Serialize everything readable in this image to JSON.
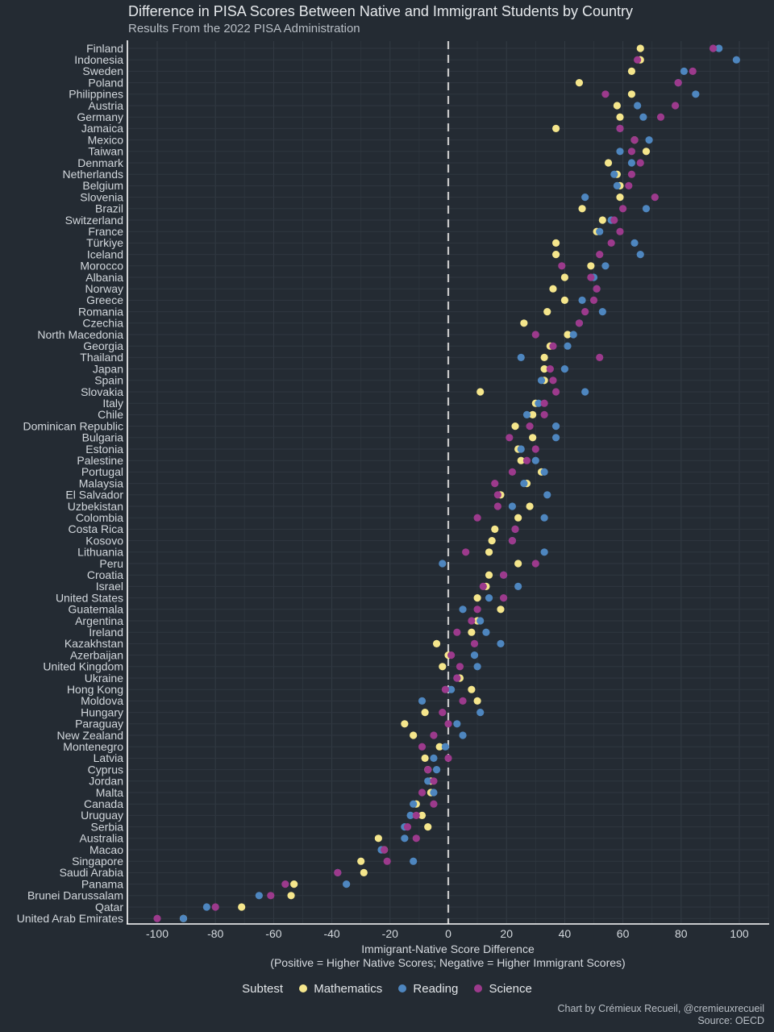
{
  "title": "Difference in PISA Scores Between Native and Immigrant Students by Country",
  "subtitle": "Results From the 2022 PISA Administration",
  "xlabel_line1": "Immigrant-Native Score Difference",
  "xlabel_line2": "(Positive = Higher Native Scores; Negative = Higher Immigrant Scores)",
  "legend": {
    "title": "Subtest",
    "mathematics": "Mathematics",
    "reading": "Reading",
    "science": "Science"
  },
  "credit_line1": "Chart by Crémieux Recueil, @cremieuxrecueil",
  "credit_line2": "Source: OECD",
  "colors": {
    "background": "#242b33",
    "mathematics": "#f5e68c",
    "reading": "#4e86bf",
    "science": "#9c3a8c",
    "zero_line": "#c8c8c8"
  },
  "chart_data": {
    "type": "scatter",
    "xlim": [
      -110,
      110
    ],
    "x_ticks": [
      -100,
      -80,
      -60,
      -40,
      -20,
      0,
      20,
      40,
      60,
      80,
      100
    ],
    "x_tick_labels": [
      "-100",
      "-80",
      "-60",
      "-40",
      "-20",
      "0",
      "20",
      "40",
      "60",
      "80",
      "100"
    ],
    "reference_line": 0,
    "countries": [
      "Finland",
      "Indonesia",
      "Sweden",
      "Poland",
      "Philippines",
      "Austria",
      "Germany",
      "Jamaica",
      "Mexico",
      "Taiwan",
      "Denmark",
      "Netherlands",
      "Belgium",
      "Slovenia",
      "Brazil",
      "Switzerland",
      "France",
      "Türkiye",
      "Iceland",
      "Morocco",
      "Albania",
      "Norway",
      "Greece",
      "Romania",
      "Czechia",
      "North Macedonia",
      "Georgia",
      "Thailand",
      "Japan",
      "Spain",
      "Slovakia",
      "Italy",
      "Chile",
      "Dominican Republic",
      "Bulgaria",
      "Estonia",
      "Palestine",
      "Portugal",
      "Malaysia",
      "El Salvador",
      "Uzbekistan",
      "Colombia",
      "Costa Rica",
      "Kosovo",
      "Lithuania",
      "Peru",
      "Croatia",
      "Israel",
      "United States",
      "Guatemala",
      "Argentina",
      "Ireland",
      "Kazakhstan",
      "Azerbaijan",
      "United Kingdom",
      "Ukraine",
      "Hong Kong",
      "Moldova",
      "Hungary",
      "Paraguay",
      "New Zealand",
      "Montenegro",
      "Latvia",
      "Cyprus",
      "Jordan",
      "Malta",
      "Canada",
      "Uruguay",
      "Serbia",
      "Australia",
      "Macao",
      "Singapore",
      "Saudi Arabia",
      "Panama",
      "Brunei Darussalam",
      "Qatar",
      "United Arab Emirates"
    ],
    "series": [
      {
        "name": "Mathematics",
        "values": [
          66,
          66,
          63,
          45,
          63,
          58,
          59,
          37,
          64,
          68,
          55,
          58,
          59,
          59,
          46,
          53,
          51,
          37,
          37,
          49,
          40,
          36,
          40,
          34,
          26,
          41,
          35,
          33,
          33,
          33,
          11,
          30,
          29,
          23,
          29,
          24,
          25,
          32,
          27,
          18,
          28,
          24,
          16,
          15,
          14,
          24,
          14,
          13,
          10,
          18,
          10,
          8,
          -4,
          0,
          -2,
          4,
          8,
          10,
          -8,
          -15,
          -12,
          -3,
          -8,
          -7,
          -6,
          -6,
          -11,
          -9,
          -7,
          -24,
          -22,
          -30,
          -29,
          -53,
          -54,
          -71,
          -91
        ]
      },
      {
        "name": "Reading",
        "values": [
          93,
          99,
          81,
          79,
          85,
          65,
          67,
          59,
          69,
          59,
          63,
          57,
          58,
          47,
          68,
          56,
          52,
          64,
          66,
          54,
          50,
          51,
          46,
          53,
          45,
          43,
          41,
          25,
          40,
          32,
          47,
          31,
          27,
          37,
          37,
          25,
          30,
          33,
          26,
          34,
          22,
          33,
          23,
          22,
          33,
          -2,
          19,
          24,
          14,
          5,
          11,
          13,
          18,
          9,
          10,
          3,
          1,
          -9,
          11,
          3,
          5,
          -1,
          -5,
          -4,
          -7,
          -5,
          -12,
          -13,
          -15,
          -15,
          -23,
          -12,
          -38,
          -35,
          -65,
          -83,
          -91
        ]
      },
      {
        "name": "Science",
        "values": [
          91,
          65,
          84,
          79,
          54,
          78,
          73,
          59,
          64,
          63,
          66,
          63,
          62,
          71,
          60,
          57,
          59,
          56,
          52,
          39,
          49,
          51,
          50,
          47,
          45,
          30,
          36,
          52,
          35,
          36,
          37,
          33,
          33,
          28,
          21,
          30,
          27,
          22,
          16,
          17,
          17,
          10,
          23,
          22,
          6,
          30,
          19,
          12,
          19,
          10,
          8,
          3,
          9,
          1,
          4,
          3,
          -1,
          5,
          -2,
          0,
          -5,
          -9,
          0,
          -7,
          -5,
          -9,
          -5,
          -11,
          -14,
          -11,
          -22,
          -21,
          -38,
          -56,
          -61,
          -80,
          -100
        ]
      }
    ]
  }
}
